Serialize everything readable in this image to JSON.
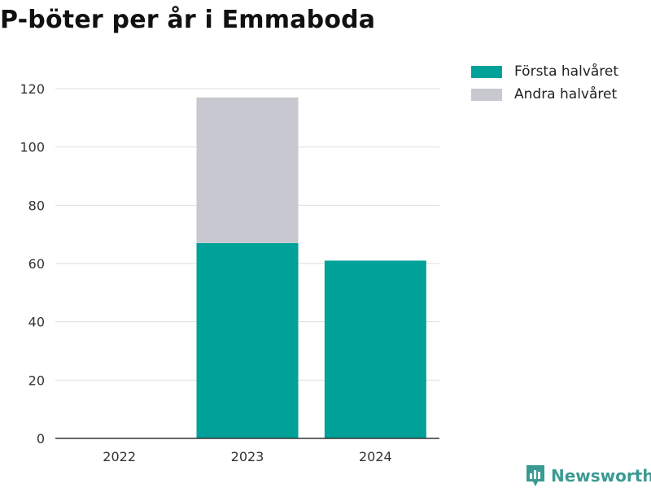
{
  "title": "P-böter per år i Emmaboda",
  "brand": {
    "name": "Newsworthy",
    "icon": "newsworthy-logo-icon",
    "color": "#3a9a92"
  },
  "chart_data": {
    "type": "bar",
    "stacked": true,
    "title": "P-böter per år i Emmaboda",
    "categories": [
      "2022",
      "2023",
      "2024"
    ],
    "series": [
      {
        "name": "Första halvåret",
        "color": "#00a198",
        "values": [
          0,
          67,
          61
        ]
      },
      {
        "name": "Andra halvåret",
        "color": "#c8c8d0",
        "values": [
          0,
          50,
          0
        ]
      }
    ],
    "ylim": [
      0,
      130
    ],
    "yticks": [
      0,
      20,
      40,
      60,
      80,
      100,
      120
    ],
    "grid": true,
    "legend_position": "top-right"
  }
}
